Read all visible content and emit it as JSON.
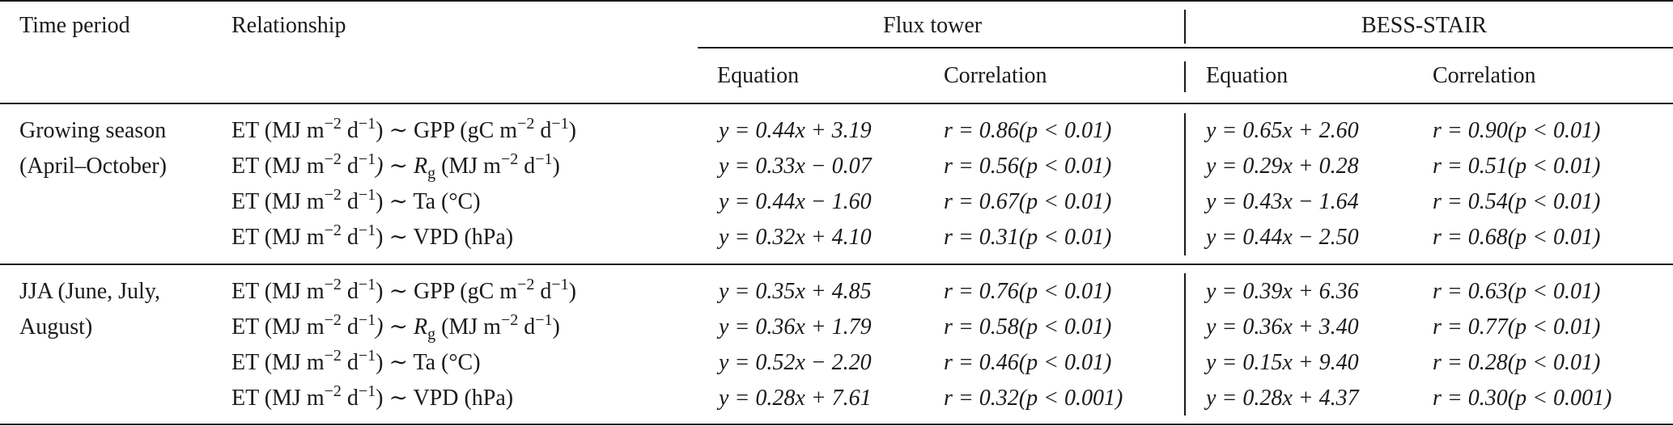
{
  "header": {
    "time_period": "Time period",
    "relationship": "Relationship",
    "flux_tower": "Flux tower",
    "bess_stair": "BESS-STAIR",
    "equation": "Equation",
    "correlation": "Correlation"
  },
  "groups": [
    {
      "period": [
        "Growing season",
        "(April–October)"
      ],
      "rows": [
        {
          "relationship": [
            "ET (MJ m",
            "−2",
            " d",
            "−1",
            ") ∼ GPP (gC m",
            "−2",
            " d",
            "−1",
            ")"
          ],
          "flux_eq": "y = 0.44x + 3.19",
          "flux_r": "r = 0.86(p < 0.01)",
          "bess_eq": "y = 0.65x + 2.60",
          "bess_r": "r = 0.90(p < 0.01)"
        },
        {
          "relationship": [
            "ET (MJ m",
            "−2",
            " d",
            "−1",
            ") ∼ R",
            "g",
            " (MJ m",
            "−2",
            " d",
            "−1",
            ")"
          ],
          "flux_eq": "y = 0.33x − 0.07",
          "flux_r": "r = 0.56(p < 0.01)",
          "bess_eq": "y = 0.29x + 0.28",
          "bess_r": "r = 0.51(p < 0.01)"
        },
        {
          "relationship": [
            "ET (MJ m",
            "−2",
            " d",
            "−1",
            ") ∼ Ta (°C)"
          ],
          "flux_eq": "y = 0.44x − 1.60",
          "flux_r": "r = 0.67(p < 0.01)",
          "bess_eq": "y = 0.43x − 1.64",
          "bess_r": "r = 0.54(p < 0.01)"
        },
        {
          "relationship": [
            "ET (MJ m",
            "−2",
            " d",
            "−1",
            ") ∼ VPD (hPa)"
          ],
          "flux_eq": "y = 0.32x + 4.10",
          "flux_r": "r = 0.31(p < 0.01)",
          "bess_eq": "y = 0.44x − 2.50",
          "bess_r": "r = 0.68(p < 0.01)"
        }
      ]
    },
    {
      "period": [
        "JJA (June, July,",
        "August)"
      ],
      "rows": [
        {
          "relationship": [
            "ET (MJ m",
            "−2",
            " d",
            "−1",
            ") ∼ GPP (gC m",
            "−2",
            " d",
            "−1",
            ")"
          ],
          "flux_eq": "y = 0.35x + 4.85",
          "flux_r": "r = 0.76(p < 0.01)",
          "bess_eq": "y = 0.39x + 6.36",
          "bess_r": "r = 0.63(p < 0.01)"
        },
        {
          "relationship": [
            "ET (MJ m",
            "−2",
            " d",
            "−1",
            ") ∼ R",
            "g",
            " (MJ m",
            "−2",
            " d",
            "−1",
            ")"
          ],
          "flux_eq": "y = 0.36x + 1.79",
          "flux_r": "r = 0.58(p < 0.01)",
          "bess_eq": "y = 0.36x + 3.40",
          "bess_r": "r = 0.77(p < 0.01)"
        },
        {
          "relationship": [
            "ET (MJ m",
            "−2",
            " d",
            "−1",
            ") ∼ Ta (°C)"
          ],
          "flux_eq": "y = 0.52x − 2.20",
          "flux_r": "r = 0.46(p < 0.01)",
          "bess_eq": "y = 0.15x + 9.40",
          "bess_r": "r = 0.28(p < 0.01)"
        },
        {
          "relationship": [
            "ET (MJ m",
            "−2",
            " d",
            "−1",
            ") ∼ VPD (hPa)"
          ],
          "flux_eq": "y = 0.28x + 7.61",
          "flux_r": "r = 0.32(p < 0.001)",
          "bess_eq": "y = 0.28x + 4.37",
          "bess_r": "r = 0.30(p < 0.001)"
        }
      ]
    }
  ]
}
